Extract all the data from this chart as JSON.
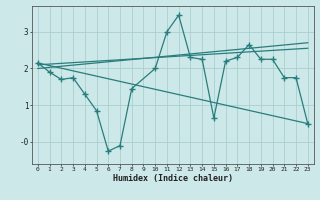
{
  "xlabel": "Humidex (Indice chaleur)",
  "bg_color": "#cce8e8",
  "line_color": "#2a7d7d",
  "grid_color": "#aacfcf",
  "xlim": [
    -0.5,
    23.5
  ],
  "ylim": [
    -0.6,
    3.7
  ],
  "xticks": [
    0,
    1,
    2,
    3,
    4,
    5,
    6,
    7,
    8,
    9,
    10,
    11,
    12,
    13,
    14,
    15,
    16,
    17,
    18,
    19,
    20,
    21,
    22,
    23
  ],
  "yticks": [
    0,
    1,
    2,
    3
  ],
  "ytick_labels": [
    "-0",
    "1",
    "2",
    "3"
  ],
  "line1_x": [
    0,
    1,
    2,
    3,
    4,
    5,
    6,
    7,
    8,
    10,
    11,
    12,
    13,
    14,
    15,
    16,
    17,
    18,
    19,
    20,
    21,
    22,
    23
  ],
  "line1_y": [
    2.15,
    1.9,
    1.7,
    1.75,
    1.3,
    0.85,
    -0.25,
    -0.1,
    1.45,
    2.0,
    3.0,
    3.45,
    2.3,
    2.25,
    0.65,
    2.2,
    2.3,
    2.65,
    2.25,
    2.25,
    1.75,
    1.75,
    0.5
  ],
  "line2_x": [
    0,
    23
  ],
  "line2_y": [
    2.1,
    2.55
  ],
  "line3_x": [
    0,
    23
  ],
  "line3_y": [
    2.0,
    2.7
  ],
  "line4_x": [
    0,
    23
  ],
  "line4_y": [
    2.15,
    0.5
  ]
}
